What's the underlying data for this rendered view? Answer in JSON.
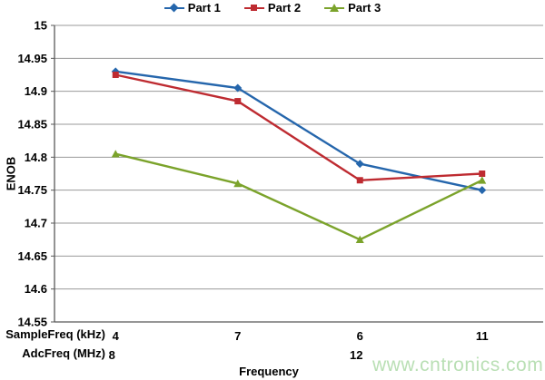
{
  "watermark": {
    "text": "www.cntronics.com",
    "color": "#b9dfb4"
  },
  "colors": {
    "gridline": "#9a9a9a",
    "axis": "#595959",
    "text": "#000000",
    "background": "#ffffff"
  },
  "chart_data": {
    "type": "line",
    "title": "",
    "xlabel": "Frequency",
    "ylabel": "ENOB",
    "x_row_labels": [
      "SampleFreq (kHz)",
      "AdcFreq (MHz)"
    ],
    "categories": [
      "4",
      "7",
      "6",
      "11"
    ],
    "categories_row2": [
      "8",
      "",
      "12",
      ""
    ],
    "ylim": [
      14.55,
      15
    ],
    "ytick_step": 0.05,
    "yticks": [
      "15",
      "14.95",
      "14.9",
      "14.85",
      "14.8",
      "14.75",
      "14.7",
      "14.65",
      "14.6",
      "14.55"
    ],
    "grid": true,
    "legend_position": "top",
    "series": [
      {
        "name": "Part 1",
        "color": "#2566ac",
        "marker": "diamond",
        "values": [
          14.93,
          14.905,
          14.79,
          14.75
        ]
      },
      {
        "name": "Part 2",
        "color": "#be2b31",
        "marker": "square",
        "values": [
          14.925,
          14.885,
          14.765,
          14.775
        ]
      },
      {
        "name": "Part 3",
        "color": "#7ba32b",
        "marker": "triangle",
        "values": [
          14.805,
          14.76,
          14.675,
          14.765
        ]
      }
    ]
  }
}
